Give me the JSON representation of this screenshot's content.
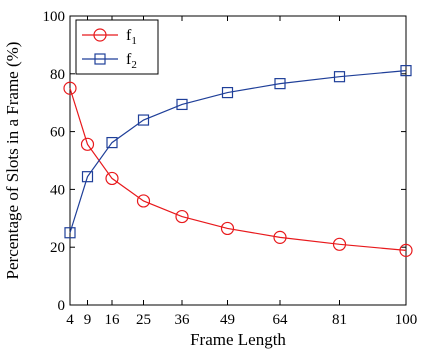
{
  "chart_data": {
    "type": "line",
    "xlabel": "Frame Length",
    "ylabel": "Percentage of Slots in a Frame (%)",
    "x": [
      4,
      9,
      16,
      25,
      36,
      49,
      64,
      81,
      100
    ],
    "x_ticks": [
      "4",
      "9",
      "16",
      "25",
      "36",
      "49",
      "64",
      "81",
      "100"
    ],
    "y_ticks": [
      "0",
      "20",
      "40",
      "60",
      "80",
      "100"
    ],
    "xlim": [
      4,
      100
    ],
    "ylim": [
      0,
      100
    ],
    "grid": false,
    "legend_position": "top-left",
    "series": [
      {
        "name": "f",
        "subscript": "1",
        "marker": "circle",
        "color": "#e8191c",
        "values": [
          75.0,
          55.6,
          43.8,
          36.0,
          30.6,
          26.5,
          23.4,
          21.0,
          18.9
        ]
      },
      {
        "name": "f",
        "subscript": "2",
        "marker": "square",
        "color": "#1f3f99",
        "values": [
          25.0,
          44.4,
          56.2,
          64.0,
          69.4,
          73.5,
          76.6,
          79.0,
          81.1
        ]
      }
    ]
  }
}
